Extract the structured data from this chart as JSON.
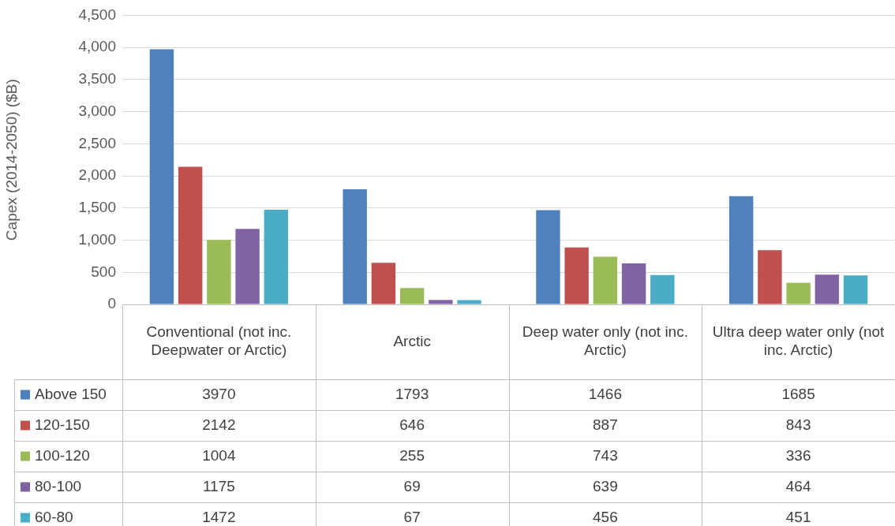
{
  "chart_data": {
    "type": "bar",
    "ylabel": "Capex (2014-2050) ($B)",
    "categories": [
      "Conventional (not inc. Deepwater or Arctic)",
      "Arctic",
      "Deep water only (not inc. Arctic)",
      "Ultra deep water only (not inc. Arctic)"
    ],
    "series": [
      {
        "name": "Above 150",
        "color": "#4f81bd",
        "values": [
          3970,
          1793,
          1466,
          1685
        ]
      },
      {
        "name": "120-150",
        "color": "#c0504d",
        "values": [
          2142,
          646,
          887,
          843
        ]
      },
      {
        "name": "100-120",
        "color": "#9bbb59",
        "values": [
          1004,
          255,
          743,
          336
        ]
      },
      {
        "name": "80-100",
        "color": "#8064a2",
        "values": [
          1175,
          69,
          639,
          464
        ]
      },
      {
        "name": "60-80",
        "color": "#4bacc6",
        "values": [
          1472,
          67,
          456,
          451
        ]
      }
    ],
    "ylim": [
      0,
      4500
    ],
    "yticks": [
      0,
      500,
      {
        "value": 1000,
        "label": "1,000"
      },
      {
        "value": 1500,
        "label": "1,500"
      },
      {
        "value": 2000,
        "label": "2,000"
      },
      {
        "value": 2500,
        "label": "2,500"
      },
      {
        "value": 3000,
        "label": "3,000"
      },
      {
        "value": 3500,
        "label": "3,500"
      },
      {
        "value": 4000,
        "label": "4,000"
      },
      {
        "value": 4500,
        "label": "4,500"
      }
    ],
    "grid": "y",
    "data_labels": true,
    "legend": "bottom left"
  }
}
